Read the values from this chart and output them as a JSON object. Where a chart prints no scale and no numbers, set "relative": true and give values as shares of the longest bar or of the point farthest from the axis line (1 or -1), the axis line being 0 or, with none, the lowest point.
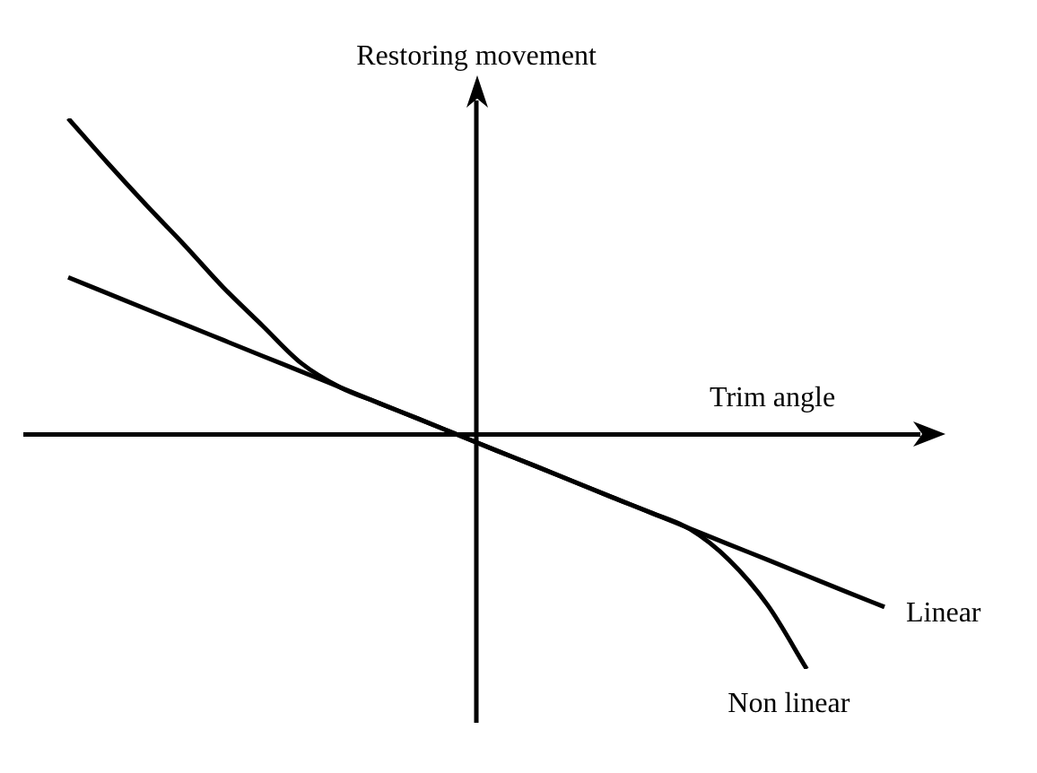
{
  "chart_data": {
    "type": "line",
    "relative": true,
    "xlabel": "Trim angle",
    "ylabel": "Restoring movement",
    "legend": false,
    "marker": "none",
    "line_style": "solid",
    "categories": [
      null,
      null,
      null,
      null,
      null,
      null,
      null,
      null,
      null,
      null,
      null,
      null,
      null,
      null,
      null,
      null,
      null,
      null,
      null,
      null,
      null,
      null
    ],
    "series": [
      {
        "name": "Linear",
        "color": "#000000",
        "values": [
          0.497,
          0.447,
          0.397,
          0.348,
          0.298,
          0.248,
          0.199,
          0.149,
          0.099,
          0.05,
          0,
          -0.05,
          -0.099,
          -0.149,
          -0.199,
          -0.248,
          -0.298,
          -0.348,
          -0.397,
          -0.447,
          -0.497,
          -0.546
        ]
      },
      {
        "name": "Non linear",
        "color": "#000000",
        "values": [
          1,
          0.861,
          0.727,
          0.598,
          0.464,
          0.344,
          0.225,
          0.149,
          0.099,
          0.05,
          0,
          -0.05,
          -0.099,
          -0.149,
          -0.199,
          -0.248,
          -0.3,
          -0.397,
          -0.541,
          -0.742,
          null,
          null
        ]
      }
    ]
  }
}
